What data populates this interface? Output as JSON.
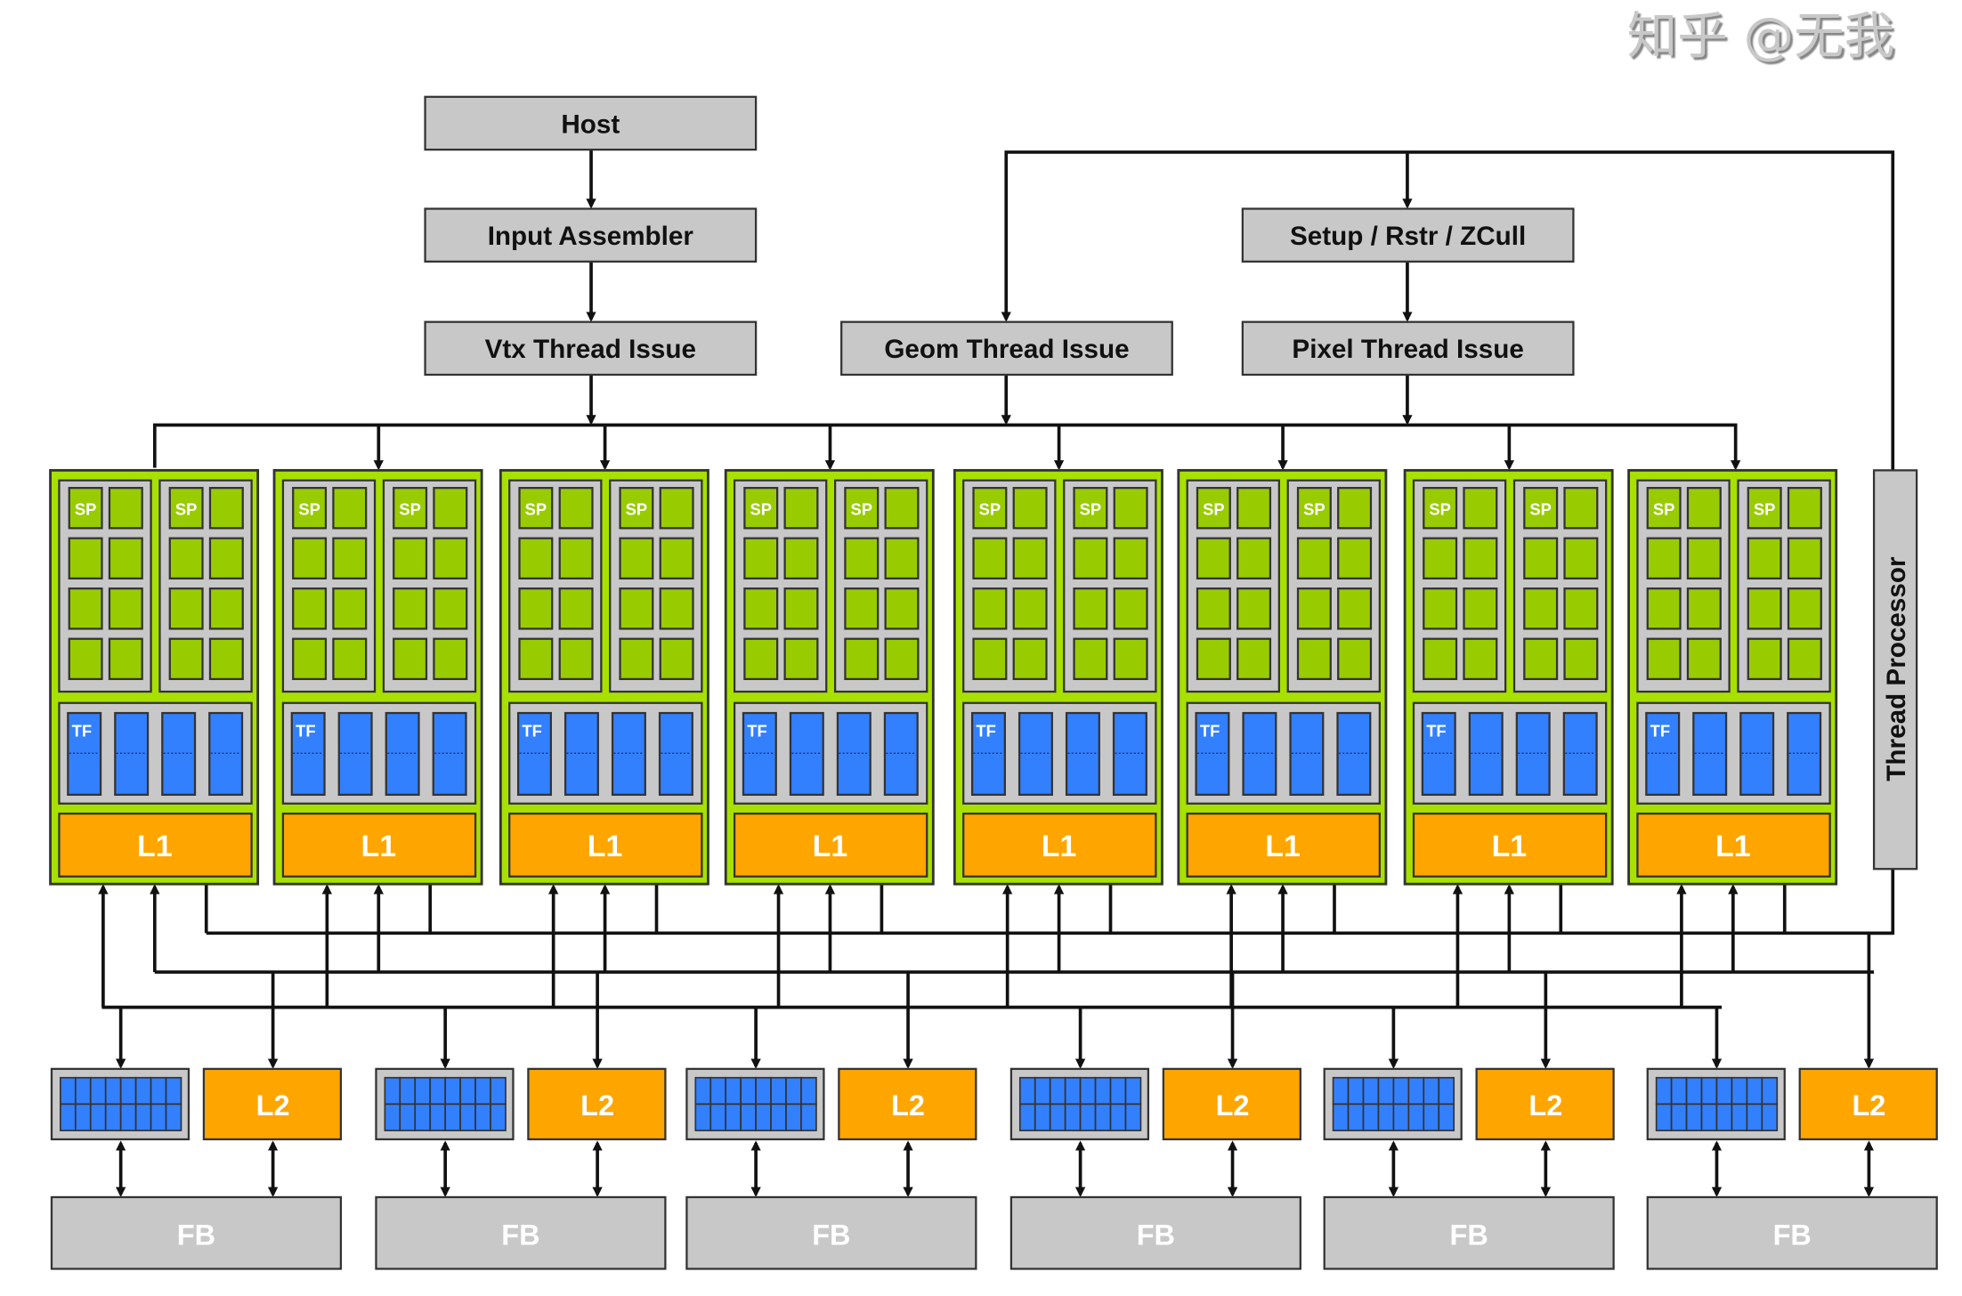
{
  "pipeline": {
    "host": "Host",
    "input_assembler": "Input Assembler",
    "vtx_thread_issue": "Vtx Thread Issue",
    "geom_thread_issue": "Geom Thread Issue",
    "setup_rstr_zcull": "Setup / Rstr / ZCull",
    "pixel_thread_issue": "Pixel Thread Issue",
    "thread_processor": "Thread Processor"
  },
  "cluster": {
    "count": 8,
    "sp_label": "SP",
    "tf_label": "TF",
    "l1_label": "L1"
  },
  "memory": {
    "partition_count": 6,
    "l2_label": "L2",
    "fb_label": "FB"
  },
  "watermark": "知乎 @无我",
  "colors": {
    "cluster_frame": "#a8e000",
    "sp_cell": "#99cc00",
    "unit_gray": "#c8c8c8",
    "tf_blue": "#3380ff",
    "cache_orange": "#ffa500",
    "fb_gray": "#c8c8c8"
  }
}
